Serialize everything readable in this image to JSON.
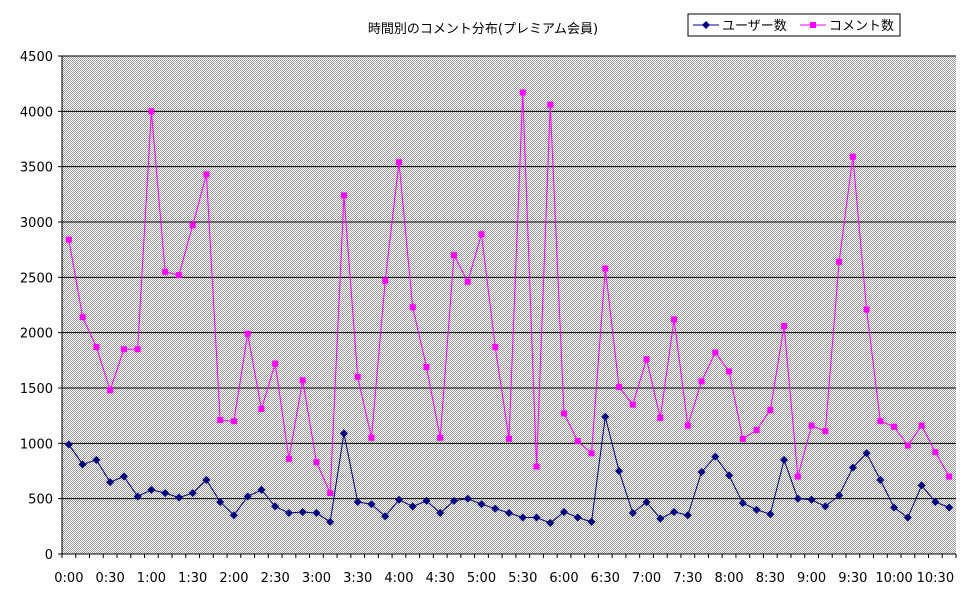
{
  "chart_data": {
    "type": "line",
    "title": "時間別のコメント分布(プレミアム会員)",
    "xlabel": "",
    "ylabel": "",
    "ylim": [
      0,
      4500
    ],
    "yticks": [
      0,
      500,
      1000,
      1500,
      2000,
      2500,
      3000,
      3500,
      4000,
      4500
    ],
    "grid": true,
    "legend_position": "top-right",
    "background": "#c0c0c0",
    "x_labels": [
      "0:00",
      "0:30",
      "1:00",
      "1:30",
      "2:00",
      "2:30",
      "3:00",
      "3:30",
      "4:00",
      "4:30",
      "5:00",
      "5:30",
      "6:00",
      "6:30",
      "7:00",
      "7:30",
      "8:00",
      "8:30",
      "9:00",
      "9:30",
      "10:00",
      "10:30"
    ],
    "series": [
      {
        "name": "ユーザー数",
        "color": "#000080",
        "marker": "diamond",
        "values": [
          990,
          810,
          850,
          650,
          700,
          520,
          580,
          550,
          510,
          550,
          670,
          470,
          350,
          520,
          580,
          430,
          370,
          380,
          370,
          290,
          1090,
          470,
          450,
          340,
          490,
          430,
          480,
          370,
          480,
          500,
          450,
          410,
          370,
          330,
          330,
          280,
          380,
          330,
          290,
          1240,
          750,
          370,
          470,
          320,
          380,
          350,
          740,
          880,
          710,
          460,
          400,
          360,
          850,
          500,
          490,
          430,
          530,
          780,
          910,
          670,
          420,
          330,
          620,
          470,
          420
        ]
      },
      {
        "name": "コメント数",
        "color": "#ff00ff",
        "marker": "square",
        "values": [
          2840,
          2140,
          1870,
          1480,
          1850,
          1850,
          4000,
          2550,
          2520,
          2970,
          3430,
          1210,
          1200,
          1990,
          1310,
          1720,
          860,
          1570,
          830,
          550,
          3240,
          1600,
          1050,
          2470,
          3540,
          2230,
          1690,
          1050,
          2700,
          2460,
          2890,
          1870,
          1040,
          4170,
          790,
          4060,
          1270,
          1020,
          910,
          2580,
          1510,
          1350,
          1760,
          1230,
          2120,
          1160,
          1560,
          1820,
          1650,
          1040,
          1120,
          1300,
          2060,
          700,
          1160,
          1110,
          2640,
          3590,
          2210,
          1200,
          1150,
          980,
          1160,
          920,
          700
        ]
      }
    ]
  }
}
